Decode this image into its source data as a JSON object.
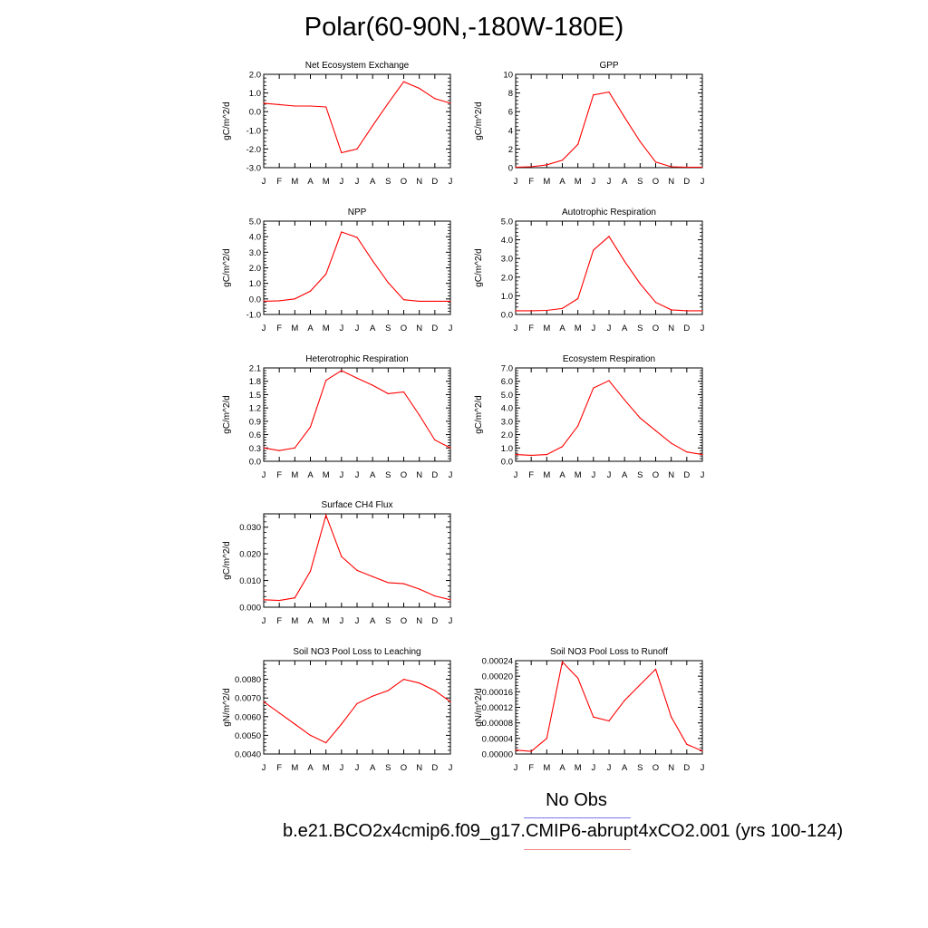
{
  "page_title": "Polar(60-90N,-180W-180E)",
  "legend": {
    "obs_label": "No Obs",
    "case_label": "b.e21.BCO2x4cmip6.f09_g17.CMIP6-abrupt4xCO2.001 (yrs 100-124)",
    "obs_color": "#6666ee",
    "case_color": "#ee6666"
  },
  "colors": {
    "series": "#ff0000",
    "axis": "#000000"
  },
  "chart_data": [
    {
      "type": "line",
      "title": "Net Ecosystem Exchange",
      "ylabel": "gC/m^2/d",
      "categories": [
        "J",
        "F",
        "M",
        "A",
        "M",
        "J",
        "J",
        "A",
        "S",
        "O",
        "N",
        "D",
        "J"
      ],
      "ylim": [
        -3.0,
        2.0
      ],
      "yticks": [
        -3.0,
        -2.0,
        -1.0,
        0.0,
        1.0,
        2.0
      ],
      "ytick_labels": [
        "-3.0",
        "-2.0",
        "-1.0",
        "0.0",
        "1.0",
        "2.0"
      ],
      "values": [
        0.45,
        0.38,
        0.3,
        0.3,
        0.25,
        -2.2,
        -2.0,
        -0.75,
        0.45,
        1.6,
        1.25,
        0.7,
        0.45
      ]
    },
    {
      "type": "line",
      "title": "GPP",
      "ylabel": "gC/m^2/d",
      "categories": [
        "J",
        "F",
        "M",
        "A",
        "M",
        "J",
        "J",
        "A",
        "S",
        "O",
        "N",
        "D",
        "J"
      ],
      "ylim": [
        0,
        10
      ],
      "yticks": [
        0,
        2,
        4,
        6,
        8,
        10
      ],
      "ytick_labels": [
        "0",
        "2",
        "4",
        "6",
        "8",
        "10"
      ],
      "values": [
        0.05,
        0.1,
        0.3,
        0.8,
        2.5,
        7.8,
        8.1,
        5.4,
        2.8,
        0.6,
        0.1,
        0.05,
        0.05
      ]
    },
    {
      "type": "line",
      "title": "NPP",
      "ylabel": "gC/m^2/d",
      "categories": [
        "J",
        "F",
        "M",
        "A",
        "M",
        "J",
        "J",
        "A",
        "S",
        "O",
        "N",
        "D",
        "J"
      ],
      "ylim": [
        -1.0,
        5.0
      ],
      "yticks": [
        -1.0,
        0.0,
        1.0,
        2.0,
        3.0,
        4.0,
        5.0
      ],
      "ytick_labels": [
        "-1.0",
        "0.0",
        "1.0",
        "2.0",
        "3.0",
        "4.0",
        "5.0"
      ],
      "values": [
        -0.15,
        -0.12,
        0.0,
        0.5,
        1.6,
        4.3,
        3.95,
        2.45,
        1.05,
        -0.05,
        -0.15,
        -0.15,
        -0.15
      ]
    },
    {
      "type": "line",
      "title": "Autotrophic Respiration",
      "ylabel": "gC/m^2/d",
      "categories": [
        "J",
        "F",
        "M",
        "A",
        "M",
        "J",
        "J",
        "A",
        "S",
        "O",
        "N",
        "D",
        "J"
      ],
      "ylim": [
        0.0,
        5.0
      ],
      "yticks": [
        0.0,
        1.0,
        2.0,
        3.0,
        4.0,
        5.0
      ],
      "ytick_labels": [
        "0.0",
        "1.0",
        "2.0",
        "3.0",
        "4.0",
        "5.0"
      ],
      "values": [
        0.2,
        0.2,
        0.22,
        0.32,
        0.85,
        3.45,
        4.18,
        2.85,
        1.65,
        0.65,
        0.25,
        0.2,
        0.2
      ]
    },
    {
      "type": "line",
      "title": "Heterotrophic Respiration",
      "ylabel": "gC/m^2/d",
      "categories": [
        "J",
        "F",
        "M",
        "A",
        "M",
        "J",
        "J",
        "A",
        "S",
        "O",
        "N",
        "D",
        "J"
      ],
      "ylim": [
        0.0,
        2.1
      ],
      "yticks": [
        0.0,
        0.3,
        0.6,
        0.9,
        1.2,
        1.5,
        1.8,
        2.1
      ],
      "ytick_labels": [
        "0.0",
        "0.3",
        "0.6",
        "0.9",
        "1.2",
        "1.5",
        "1.8",
        "2.1"
      ],
      "values": [
        0.3,
        0.24,
        0.3,
        0.77,
        1.82,
        2.04,
        1.87,
        1.71,
        1.52,
        1.56,
        1.04,
        0.48,
        0.3
      ]
    },
    {
      "type": "line",
      "title": "Ecosystem Respiration",
      "ylabel": "gC/m^2/d",
      "categories": [
        "J",
        "F",
        "M",
        "A",
        "M",
        "J",
        "J",
        "A",
        "S",
        "O",
        "N",
        "D",
        "J"
      ],
      "ylim": [
        0.0,
        7.0
      ],
      "yticks": [
        0.0,
        1.0,
        2.0,
        3.0,
        4.0,
        5.0,
        6.0,
        7.0
      ],
      "ytick_labels": [
        "0.0",
        "1.0",
        "2.0",
        "3.0",
        "4.0",
        "5.0",
        "6.0",
        "7.0"
      ],
      "values": [
        0.5,
        0.45,
        0.5,
        1.1,
        2.65,
        5.5,
        6.05,
        4.6,
        3.25,
        2.3,
        1.35,
        0.7,
        0.5
      ]
    },
    {
      "type": "line",
      "title": "Surface CH4 Flux",
      "ylabel": "gC/m^2/d",
      "categories": [
        "J",
        "F",
        "M",
        "A",
        "M",
        "J",
        "J",
        "A",
        "S",
        "O",
        "N",
        "D",
        "J"
      ],
      "ylim": [
        0.0,
        0.035
      ],
      "yticks": [
        0.0,
        0.01,
        0.02,
        0.03
      ],
      "ytick_labels": [
        "0.000",
        "0.010",
        "0.020",
        "0.030"
      ],
      "values": [
        0.0028,
        0.0025,
        0.0035,
        0.0135,
        0.0345,
        0.019,
        0.0138,
        0.0115,
        0.0092,
        0.0088,
        0.0068,
        0.0042,
        0.0028
      ]
    },
    {
      "type": "line",
      "title": "Soil NO3 Pool Loss to Leaching",
      "ylabel": "gN/m^2/d",
      "categories": [
        "J",
        "F",
        "M",
        "A",
        "M",
        "J",
        "J",
        "A",
        "S",
        "O",
        "N",
        "D",
        "J"
      ],
      "ylim": [
        0.004,
        0.009
      ],
      "yticks": [
        0.004,
        0.005,
        0.006,
        0.007,
        0.008
      ],
      "ytick_labels": [
        "0.0040",
        "0.0050",
        "0.0060",
        "0.0070",
        "0.0080"
      ],
      "values": [
        0.0068,
        0.0062,
        0.0056,
        0.005,
        0.0046,
        0.0056,
        0.0067,
        0.0071,
        0.0074,
        0.008,
        0.0078,
        0.0074,
        0.0068
      ]
    },
    {
      "type": "line",
      "title": "Soil NO3 Pool Loss to Runoff",
      "ylabel": "gN/m^2/d",
      "categories": [
        "J",
        "F",
        "M",
        "A",
        "M",
        "J",
        "J",
        "A",
        "S",
        "O",
        "N",
        "D",
        "J"
      ],
      "ylim": [
        0.0,
        0.00024
      ],
      "yticks": [
        0.0,
        4e-05,
        8e-05,
        0.00012,
        0.00016,
        0.0002,
        0.00024
      ],
      "ytick_labels": [
        "0.00000",
        "0.00004",
        "0.00008",
        "0.00012",
        "0.00016",
        "0.00020",
        "0.00024"
      ],
      "values": [
        1e-05,
        7e-06,
        4e-05,
        0.000237,
        0.000195,
        9.5e-05,
        8.5e-05,
        0.000138,
        0.000178,
        0.000218,
        9.5e-05,
        2.5e-05,
        8e-06
      ]
    }
  ]
}
